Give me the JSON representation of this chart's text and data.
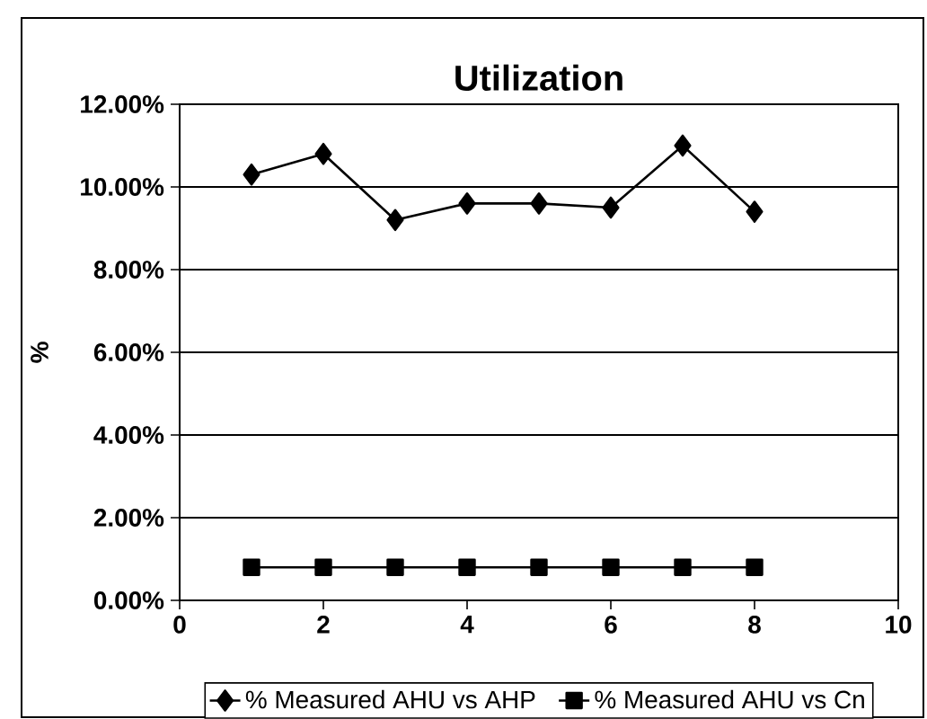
{
  "chart_data": {
    "type": "line",
    "title": "Utilization",
    "ylabel": "%",
    "x": [
      1,
      2,
      3,
      4,
      5,
      6,
      7,
      8
    ],
    "series": [
      {
        "name": "% Measured AHU vs AHP",
        "color": "#000000",
        "marker": "diamond",
        "values": [
          10.3,
          10.8,
          9.2,
          9.6,
          9.6,
          9.5,
          11.0,
          9.4
        ]
      },
      {
        "name": "% Measured AHU vs Cn",
        "color": "#000000",
        "marker": "square",
        "values": [
          0.8,
          0.8,
          0.8,
          0.8,
          0.8,
          0.8,
          0.8,
          0.8
        ]
      }
    ],
    "xlim": [
      0,
      10
    ],
    "xticks": [
      0,
      2,
      4,
      6,
      8,
      10
    ],
    "ylim": [
      0,
      12
    ],
    "yticks": [
      {
        "value": 0,
        "label": "0.00%"
      },
      {
        "value": 2,
        "label": "2.00%"
      },
      {
        "value": 4,
        "label": "4.00%"
      },
      {
        "value": 6,
        "label": "6.00%"
      },
      {
        "value": 8,
        "label": "8.00%"
      },
      {
        "value": 10,
        "label": "10.00%"
      },
      {
        "value": 12,
        "label": "12.00%"
      }
    ],
    "grid": "y",
    "legend": "bottom",
    "line_style": "solid"
  }
}
